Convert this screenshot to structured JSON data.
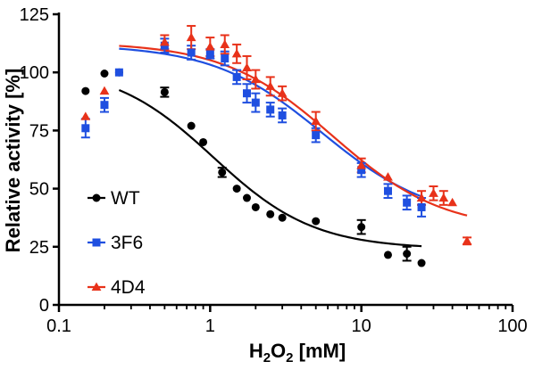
{
  "chart_data": {
    "type": "scatter",
    "xlabel": "H2O2 [mM]",
    "xlabel_parts": {
      "main1": "H",
      "sub1": "2",
      "main2": "O",
      "sub2": "2",
      "rest": " [mM]"
    },
    "ylabel": "Relative activity [%]",
    "x_scale": "log",
    "xlim": [
      0.1,
      100
    ],
    "ylim": [
      0,
      125
    ],
    "x_tick_values": [
      0.1,
      1,
      10,
      100
    ],
    "x_tick_labels": [
      "0.1",
      "1",
      "10",
      "100"
    ],
    "y_tick_values": [
      0,
      25,
      50,
      75,
      100,
      125
    ],
    "y_tick_labels": [
      "0",
      "25",
      "50",
      "75",
      "100",
      "125"
    ],
    "grid": false,
    "legend_position": "bottom-left",
    "series": [
      {
        "name": "WT",
        "color": "#000000",
        "marker": "circle",
        "points": [
          {
            "x": 0.15,
            "y": 92,
            "err": 0
          },
          {
            "x": 0.2,
            "y": 99.5,
            "err": 0
          },
          {
            "x": 0.25,
            "y": 100,
            "err": 0
          },
          {
            "x": 0.5,
            "y": 91.5,
            "err": 2
          },
          {
            "x": 0.75,
            "y": 77,
            "err": 0
          },
          {
            "x": 0.9,
            "y": 70,
            "err": 0
          },
          {
            "x": 1.2,
            "y": 57,
            "err": 2
          },
          {
            "x": 1.5,
            "y": 50,
            "err": 0
          },
          {
            "x": 1.75,
            "y": 46,
            "err": 0
          },
          {
            "x": 2,
            "y": 42,
            "err": 0
          },
          {
            "x": 2.5,
            "y": 39,
            "err": 0
          },
          {
            "x": 3,
            "y": 37.5,
            "err": 0
          },
          {
            "x": 5,
            "y": 36,
            "err": 0
          },
          {
            "x": 10,
            "y": 33.5,
            "err": 3
          },
          {
            "x": 15,
            "y": 21.5,
            "err": 0
          },
          {
            "x": 20,
            "y": 22,
            "err": 3
          },
          {
            "x": 25,
            "y": 18,
            "err": 0
          }
        ],
        "fit": {
          "bottom": 24,
          "top": 103,
          "ec50": 1.05,
          "hill": 1.3
        }
      },
      {
        "name": "3F6",
        "color": "#1f4fe0",
        "marker": "square",
        "points": [
          {
            "x": 0.15,
            "y": 76,
            "err": 4
          },
          {
            "x": 0.2,
            "y": 86,
            "err": 3
          },
          {
            "x": 0.25,
            "y": 100,
            "err": 0
          },
          {
            "x": 0.5,
            "y": 111.5,
            "err": 3
          },
          {
            "x": 0.75,
            "y": 108.5,
            "err": 3
          },
          {
            "x": 1,
            "y": 108,
            "err": 2
          },
          {
            "x": 1.25,
            "y": 106,
            "err": 3
          },
          {
            "x": 1.5,
            "y": 98,
            "err": 3
          },
          {
            "x": 1.75,
            "y": 91,
            "err": 4
          },
          {
            "x": 2,
            "y": 87,
            "err": 4
          },
          {
            "x": 2.5,
            "y": 84,
            "err": 3
          },
          {
            "x": 3,
            "y": 81.5,
            "err": 3
          },
          {
            "x": 5,
            "y": 73,
            "err": 3
          },
          {
            "x": 10,
            "y": 58,
            "err": 3
          },
          {
            "x": 15,
            "y": 49,
            "err": 3
          },
          {
            "x": 20,
            "y": 44,
            "err": 3
          },
          {
            "x": 25,
            "y": 42,
            "err": 4
          }
        ],
        "fit": {
          "bottom": 36,
          "top": 112,
          "ec50": 5.5,
          "hill": 1.2
        }
      },
      {
        "name": "4D4",
        "color": "#e8321a",
        "marker": "triangle",
        "points": [
          {
            "x": 0.15,
            "y": 81,
            "err": 0
          },
          {
            "x": 0.2,
            "y": 92,
            "err": 0
          },
          {
            "x": 0.5,
            "y": 113,
            "err": 3
          },
          {
            "x": 0.75,
            "y": 115,
            "err": 5
          },
          {
            "x": 1,
            "y": 111,
            "err": 4
          },
          {
            "x": 1.25,
            "y": 112,
            "err": 4
          },
          {
            "x": 1.5,
            "y": 108,
            "err": 4
          },
          {
            "x": 1.75,
            "y": 102,
            "err": 5
          },
          {
            "x": 2,
            "y": 97,
            "err": 4
          },
          {
            "x": 2.5,
            "y": 94,
            "err": 4
          },
          {
            "x": 3,
            "y": 91,
            "err": 3
          },
          {
            "x": 5,
            "y": 79,
            "err": 4
          },
          {
            "x": 10,
            "y": 60,
            "err": 3
          },
          {
            "x": 15,
            "y": 55,
            "err": 0
          },
          {
            "x": 25,
            "y": 46,
            "err": 3
          },
          {
            "x": 30,
            "y": 48,
            "err": 3
          },
          {
            "x": 35,
            "y": 46,
            "err": 3
          },
          {
            "x": 40,
            "y": 44,
            "err": 0
          },
          {
            "x": 50,
            "y": 27.5,
            "err": 1.5
          }
        ],
        "fit": {
          "bottom": 32,
          "top": 113,
          "ec50": 6.5,
          "hill": 1.2
        }
      }
    ]
  }
}
